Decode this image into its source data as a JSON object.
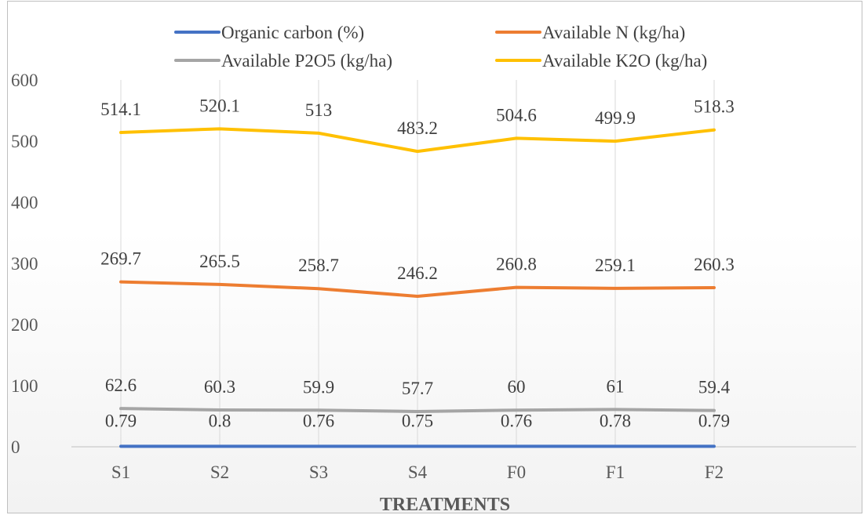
{
  "chart_data": {
    "type": "line",
    "title": "",
    "xlabel": "TREATMENTS",
    "ylabel": "",
    "categories": [
      "S1",
      "S2",
      "S3",
      "S4",
      "F0",
      "F1",
      "F2"
    ],
    "ylim": [
      0,
      600
    ],
    "yticks": [
      0,
      100,
      200,
      300,
      400,
      500,
      600
    ],
    "grid": "vertical",
    "legend_position": "top",
    "series": [
      {
        "name": "Organic carbon (%)",
        "color": "#4472C4",
        "values": [
          0.79,
          0.8,
          0.76,
          0.75,
          0.76,
          0.78,
          0.79
        ],
        "labels": [
          "0.79",
          "0.8",
          "0.76",
          "0.75",
          "0.76",
          "0.78",
          "0.79"
        ]
      },
      {
        "name": "Available N (kg/ha)",
        "color": "#ED7D31",
        "values": [
          269.7,
          265.5,
          258.7,
          246.2,
          260.8,
          259.1,
          260.3
        ],
        "labels": [
          "269.7",
          "265.5",
          "258.7",
          "246.2",
          "260.8",
          "259.1",
          "260.3"
        ]
      },
      {
        "name": "Available P2O5 (kg/ha)",
        "color": "#A5A5A5",
        "values": [
          62.6,
          60.3,
          59.9,
          57.7,
          60,
          61,
          59.4
        ],
        "labels": [
          "62.6",
          "60.3",
          "59.9",
          "57.7",
          "60",
          "61",
          "59.4"
        ]
      },
      {
        "name": "Available K2O (kg/ha)",
        "color": "#FFC000",
        "values": [
          514.1,
          520.1,
          513,
          483.2,
          504.6,
          499.9,
          518.3
        ],
        "labels": [
          "514.1",
          "520.1",
          "513",
          "483.2",
          "504.6",
          "499.9",
          "518.3"
        ]
      }
    ]
  }
}
